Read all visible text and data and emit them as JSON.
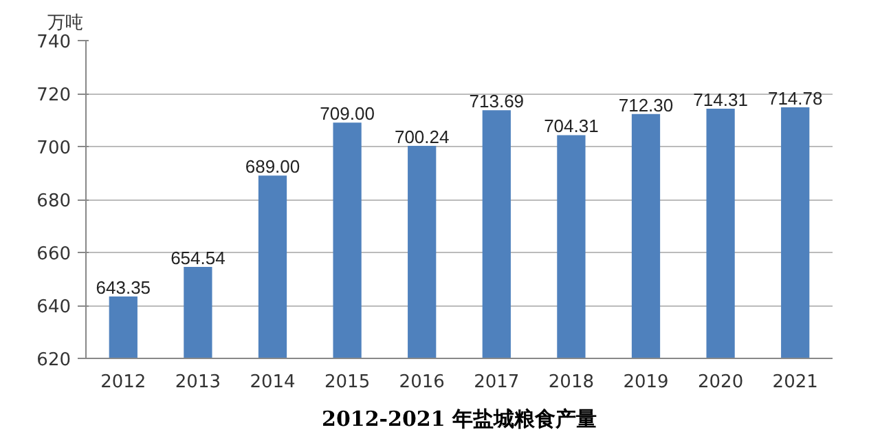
{
  "chart_data": {
    "type": "bar",
    "title": "2012-2021 年盐城粮食产量",
    "ylabel": "万吨",
    "categories": [
      "2012",
      "2013",
      "2014",
      "2015",
      "2016",
      "2017",
      "2018",
      "2019",
      "2020",
      "2021"
    ],
    "values": [
      643.35,
      654.54,
      689.0,
      709.0,
      700.24,
      713.69,
      704.31,
      712.3,
      714.31,
      714.78
    ],
    "value_labels": [
      "643.35",
      "654.54",
      "689.00",
      "709.00",
      "700.24",
      "713.69",
      "704.31",
      "712.30",
      "714.31",
      "714.78"
    ],
    "color": "#4f81bd",
    "ylim": [
      620,
      740
    ],
    "yticks": [
      620,
      640,
      660,
      680,
      700,
      720,
      740
    ],
    "grid": "y"
  }
}
